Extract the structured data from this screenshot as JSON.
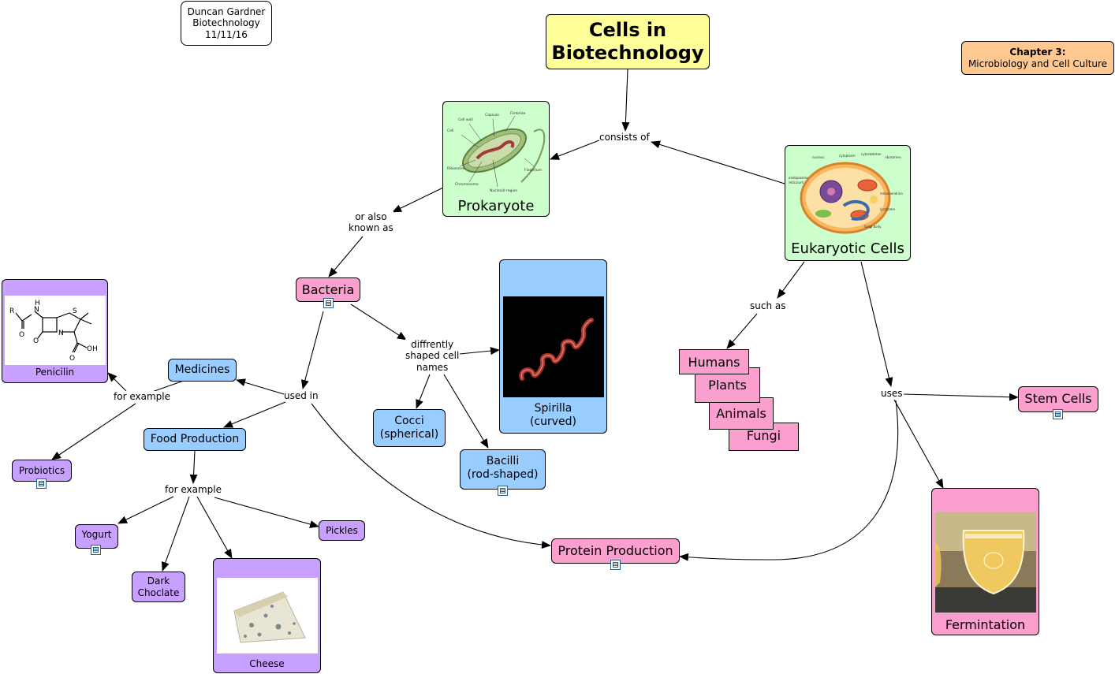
{
  "author_box": {
    "line1": "Duncan Gardner",
    "line2": "Biotechnology",
    "line3": "11/11/16"
  },
  "title": {
    "line1": "Cells in",
    "line2": "Biotechnology"
  },
  "chapter": {
    "line1": "Chapter 3:",
    "line2": "Microbiology and Cell Culture"
  },
  "nodes": {
    "prokaryote": "Prokaryote",
    "eukaryotic": "Eukaryotic Cells",
    "bacteria": "Bacteria",
    "spirilla_line1": "Spirilla",
    "spirilla_line2": "(curved)",
    "cocci_line1": "Cocci",
    "cocci_line2": "(spherical)",
    "bacilli_line1": "Bacilli",
    "bacilli_line2": "(rod-shaped)",
    "medicines": "Medicines",
    "food_production": "Food Production",
    "penicilin": "Penicilin",
    "probiotics": "Probiotics",
    "yogurt": "Yogurt",
    "dark_choclate_line1": "Dark",
    "dark_choclate_line2": "Choclate",
    "cheese": "Cheese",
    "pickles": "Pickles",
    "protein_production": "Protein Production",
    "humans": "Humans",
    "plants": "Plants",
    "animals": "Animals",
    "fungi": "Fungi",
    "stem_cells": "Stem Cells",
    "fermintation": "Fermintation"
  },
  "links": {
    "consists_of": "consists of",
    "or_also_line1": "or also",
    "or_also_line2": "known as",
    "diffrently_line1": "diffrently",
    "diffrently_line2": "shaped cell",
    "diffrently_line3": "names",
    "used_in": "used in",
    "for_example_1": "for example",
    "for_example_2": "for example",
    "such_as": "such as",
    "uses": "uses"
  },
  "penicilin_structure": {
    "r": "R",
    "nh": "N",
    "h": "H",
    "s": "S",
    "n": "N",
    "o1": "O",
    "o2": "O",
    "oh": "OH",
    "o3": "O"
  },
  "colors": {
    "title_bg": "#ffff99",
    "chapter_bg": "#ffc891",
    "green": "#ccffcc",
    "pink": "#fb9fce",
    "blue": "#99ccff",
    "purple": "#c8a0ff"
  }
}
